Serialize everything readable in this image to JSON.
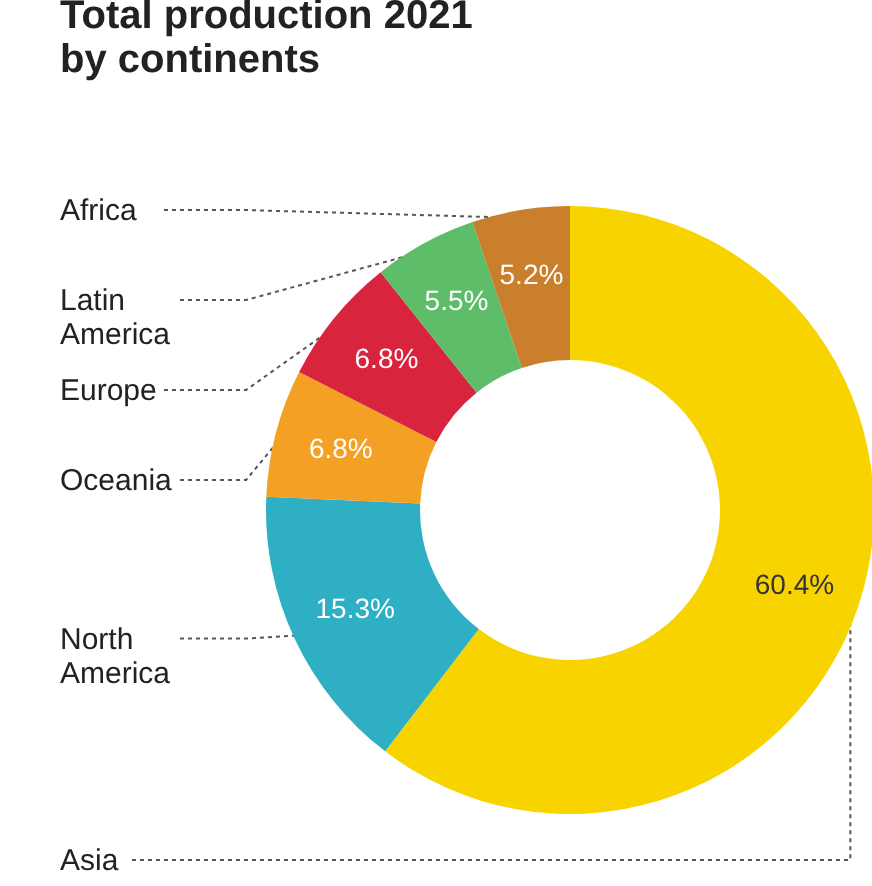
{
  "chart_data": {
    "type": "donut",
    "title": "Total production 2021 by continents",
    "categories": [
      "Asia",
      "North America",
      "Oceania",
      "Europe",
      "Latin America",
      "Africa"
    ],
    "values": [
      60.4,
      15.3,
      6.8,
      6.8,
      5.5,
      5.2
    ],
    "value_labels": [
      "60.4%",
      "15.3%",
      "6.8%",
      "6.8%",
      "5.5%",
      "5.2%"
    ],
    "colors": [
      "#f7d400",
      "#2eafc4",
      "#f4a024",
      "#d8243c",
      "#5dbd68",
      "#c97f2c"
    ],
    "legend": false
  }
}
